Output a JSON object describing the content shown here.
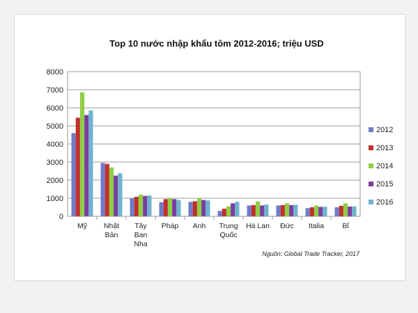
{
  "chart_data": {
    "type": "bar",
    "title": "Top 10 nước nhập khẩu tôm 2012-2016; triệu USD",
    "source": "Nguồn: Global Trade Tracker, 2017",
    "categories": [
      [
        "Mỹ"
      ],
      [
        "Nhật",
        "Bản"
      ],
      [
        "Tây",
        "Ban",
        "Nha"
      ],
      [
        "Pháp"
      ],
      [
        "Anh"
      ],
      [
        "Trung",
        "Quốc"
      ],
      [
        "Hà Lan"
      ],
      [
        "Đức"
      ],
      [
        "Italia"
      ],
      [
        "Bỉ"
      ]
    ],
    "ylim": [
      0,
      8000
    ],
    "yticks": [
      "0",
      "1000",
      "2000",
      "3000",
      "4000",
      "5000",
      "6000",
      "7000",
      "8000"
    ],
    "grid": true,
    "legend_position": "right",
    "series": [
      {
        "name": "2012",
        "color": "#6f7dc8",
        "values": [
          4600,
          2950,
          1000,
          780,
          800,
          300,
          600,
          600,
          450,
          500
        ]
      },
      {
        "name": "2013",
        "color": "#c0312d",
        "values": [
          5450,
          2900,
          1080,
          950,
          830,
          420,
          620,
          620,
          500,
          580
        ]
      },
      {
        "name": "2014",
        "color": "#8fcf45",
        "values": [
          6850,
          2700,
          1200,
          1000,
          1000,
          550,
          820,
          720,
          600,
          720
        ]
      },
      {
        "name": "2015",
        "color": "#7b3fa0",
        "values": [
          5600,
          2250,
          1130,
          950,
          900,
          720,
          600,
          620,
          520,
          540
        ]
      },
      {
        "name": "2016",
        "color": "#6fb4cf",
        "values": [
          5850,
          2380,
          1150,
          900,
          880,
          800,
          650,
          640,
          530,
          550
        ]
      }
    ]
  }
}
